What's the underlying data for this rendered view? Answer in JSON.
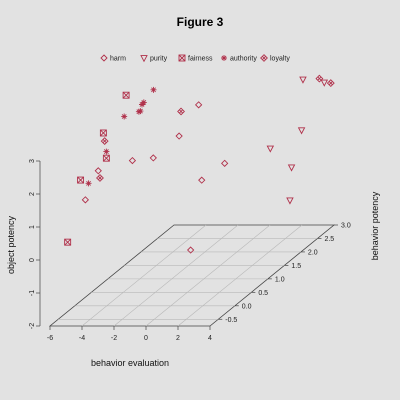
{
  "chart_data": {
    "type": "scatter",
    "title": "Figure 3",
    "xlabel": "behavior evaluation",
    "ylabel": "behavior potency",
    "zlabel": "object potency",
    "xlim": [
      -6,
      4
    ],
    "ylim": [
      -0.75,
      3.0
    ],
    "zlim": [
      -2,
      3
    ],
    "x_ticks": [
      "-6",
      "-4",
      "-2",
      "0",
      "2",
      "4"
    ],
    "y_ticks": [
      "-0.5",
      "0.0",
      "0.5",
      "1.0",
      "1.5",
      "2.0",
      "2.5",
      "3.0"
    ],
    "z_ticks": [
      "-2",
      "-1",
      "0",
      "1",
      "2",
      "3"
    ],
    "grid": true,
    "legend_position": "top",
    "colors": {
      "marker": "#b0304a",
      "grid": "#b8b8b8",
      "axis": "#444444"
    },
    "series": [
      {
        "name": "harm",
        "marker": "diamond",
        "points": [
          [
            -4.1,
            -0.6,
            1.7
          ],
          [
            -3.5,
            -0.5,
            2.5
          ],
          [
            -2.4,
            0.0,
            2.4
          ],
          [
            -1.3,
            0.1,
            2.4
          ],
          [
            -0.1,
            0.3,
            2.9
          ],
          [
            0.9,
            0.5,
            1.4
          ],
          [
            1.3,
            1.0,
            1.5
          ],
          [
            0.0,
            0.6,
            -0.8
          ],
          [
            0.5,
            0.6,
            3.6
          ]
        ]
      },
      {
        "name": "purity",
        "marker": "triangle",
        "points": [
          [
            2.8,
            2.6,
            1.2
          ],
          [
            3.3,
            2.4,
            2.9
          ],
          [
            2.5,
            1.8,
            1.3
          ],
          [
            2.9,
            2.2,
            -0.6
          ],
          [
            3.0,
            2.2,
            0.4
          ],
          [
            3.6,
            2.9,
            2.4
          ]
        ]
      },
      {
        "name": "fairness",
        "marker": "boxx",
        "points": [
          [
            -4.4,
            -0.6,
            2.3
          ],
          [
            -3.2,
            -0.4,
            2.8
          ],
          [
            -3.0,
            0.1,
            4.3
          ],
          [
            -3.8,
            -0.2,
            3.4
          ],
          [
            -5.0,
            -0.7,
            0.5
          ]
        ]
      },
      {
        "name": "authority",
        "marker": "star",
        "points": [
          [
            -3.9,
            -0.6,
            2.2
          ],
          [
            -2.5,
            -0.2,
            3.9
          ],
          [
            -2.2,
            0.1,
            3.8
          ],
          [
            -2.1,
            0.2,
            4.0
          ],
          [
            -1.9,
            0.0,
            3.9
          ],
          [
            -1.8,
            0.0,
            4.1
          ],
          [
            -1.7,
            0.3,
            4.3
          ],
          [
            -3.2,
            -0.4,
            3.0
          ]
        ]
      },
      {
        "name": "loyalty",
        "marker": "diamx",
        "points": [
          [
            -3.1,
            -0.5,
            3.4
          ],
          [
            -3.6,
            -0.4,
            2.2
          ],
          [
            -0.6,
            0.6,
            3.4
          ],
          [
            3.5,
            2.8,
            2.6
          ],
          [
            3.8,
            3.0,
            2.3
          ]
        ]
      }
    ]
  }
}
